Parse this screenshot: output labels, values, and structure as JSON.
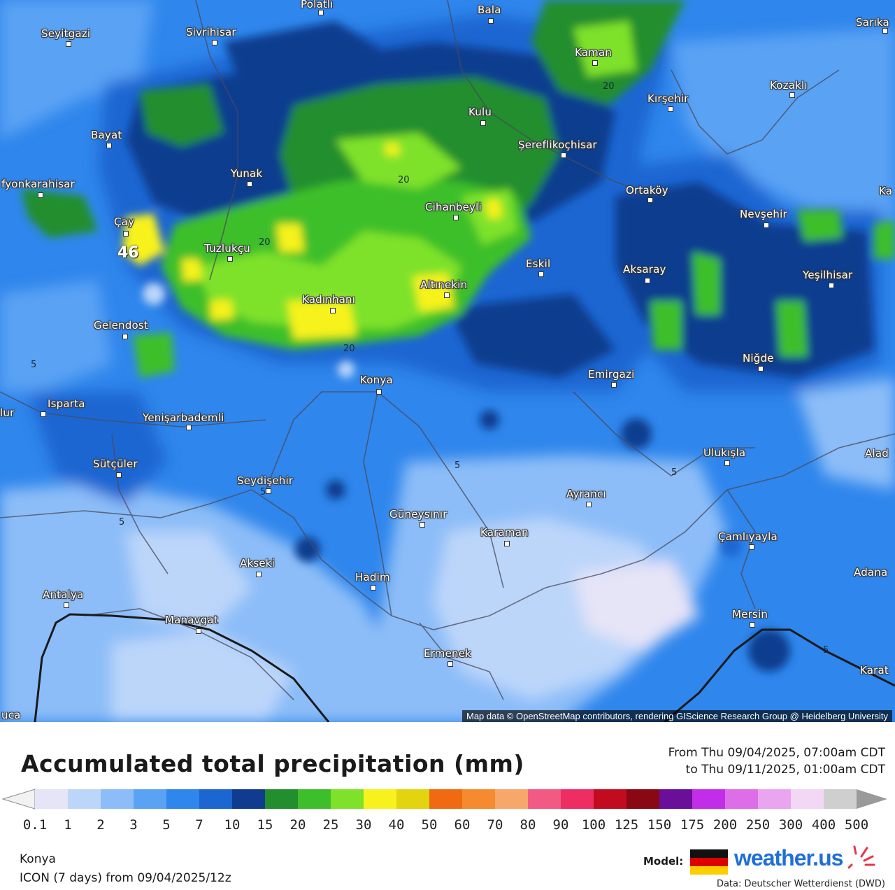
{
  "legend": {
    "title": "Accumulated total precipitation (mm)",
    "period_from": "From Thu 09/04/2025, 07:00am CDT",
    "period_to": "to Thu 09/11/2025, 01:00am CDT",
    "labels": [
      "0.1",
      "1",
      "2",
      "3",
      "5",
      "7",
      "10",
      "15",
      "20",
      "25",
      "30",
      "40",
      "50",
      "60",
      "70",
      "80",
      "90",
      "100",
      "125",
      "150",
      "175",
      "200",
      "250",
      "300",
      "400",
      "500"
    ],
    "colors": [
      "#e6e4f7",
      "#bcd6fa",
      "#8cbdf8",
      "#5aa2f4",
      "#2f86ec",
      "#1c66d2",
      "#0f3c8f",
      "#238e2e",
      "#3cbf2a",
      "#7ee22a",
      "#f7f21e",
      "#e2d40f",
      "#f06a12",
      "#f58a2e",
      "#f7a76a",
      "#f25a83",
      "#ee2e63",
      "#c20b1e",
      "#8a0714",
      "#6a0f9a",
      "#c12de8",
      "#de6ee8",
      "#e9a5ef",
      "#f3d8f5",
      "#cfcfcf"
    ]
  },
  "location": {
    "name": "Konya",
    "model_run": "ICON (7 days) from 09/04/2025/12z"
  },
  "branding": {
    "model_label": "Model:",
    "brand": "weather.us",
    "source": "Data: Deutscher Wetterdienst (DWD)",
    "flag_colors": [
      "#111111",
      "#dd0000",
      "#ffce00"
    ]
  },
  "map": {
    "attribution": "Map data © OpenStreetMap contributors, rendering GIScience Research Group @ Heidelberg University",
    "max_value": "46",
    "cities": [
      {
        "name": "Polatlı"
      },
      {
        "name": "Bala"
      },
      {
        "name": "Sarıka"
      },
      {
        "name": "Seyitgazi"
      },
      {
        "name": "Sivrihisar"
      },
      {
        "name": "Kaman"
      },
      {
        "name": "Kozaklı"
      },
      {
        "name": "Kırşehir"
      },
      {
        "name": "Kulu"
      },
      {
        "name": "Bayat"
      },
      {
        "name": "Şereflikoçhisar"
      },
      {
        "name": "Yunak"
      },
      {
        "name": "fyonkarahisar"
      },
      {
        "name": "Ortaköy"
      },
      {
        "name": "Ka"
      },
      {
        "name": "Cihanbeyli"
      },
      {
        "name": "Nevşehir"
      },
      {
        "name": "Çay"
      },
      {
        "name": "Tuzlukçu"
      },
      {
        "name": "Eskil"
      },
      {
        "name": "Aksaray"
      },
      {
        "name": "Yeşilhisar"
      },
      {
        "name": "Altınekin"
      },
      {
        "name": "Kadınhanı"
      },
      {
        "name": "Gelendost"
      },
      {
        "name": "Niğde"
      },
      {
        "name": "Konya"
      },
      {
        "name": "Emirgazi"
      },
      {
        "name": "Isparta"
      },
      {
        "name": "lur"
      },
      {
        "name": "Yenişarbademli"
      },
      {
        "name": "Ulukışla"
      },
      {
        "name": "Alad"
      },
      {
        "name": "Sütçüler"
      },
      {
        "name": "Seydişehir"
      },
      {
        "name": "Ayrancı"
      },
      {
        "name": "Güneysınır"
      },
      {
        "name": "Karaman"
      },
      {
        "name": "Çamlıyayla"
      },
      {
        "name": "Akseki"
      },
      {
        "name": "Hadim"
      },
      {
        "name": "Adana"
      },
      {
        "name": "Antalya"
      },
      {
        "name": "Manavgat"
      },
      {
        "name": "Mersin"
      },
      {
        "name": "Ermenek"
      },
      {
        "name": "Karat"
      },
      {
        "name": "uca"
      }
    ],
    "contour_labels": [
      "20",
      "20",
      "20",
      "20",
      "5",
      "5",
      "5",
      "5",
      "5",
      "5"
    ]
  }
}
